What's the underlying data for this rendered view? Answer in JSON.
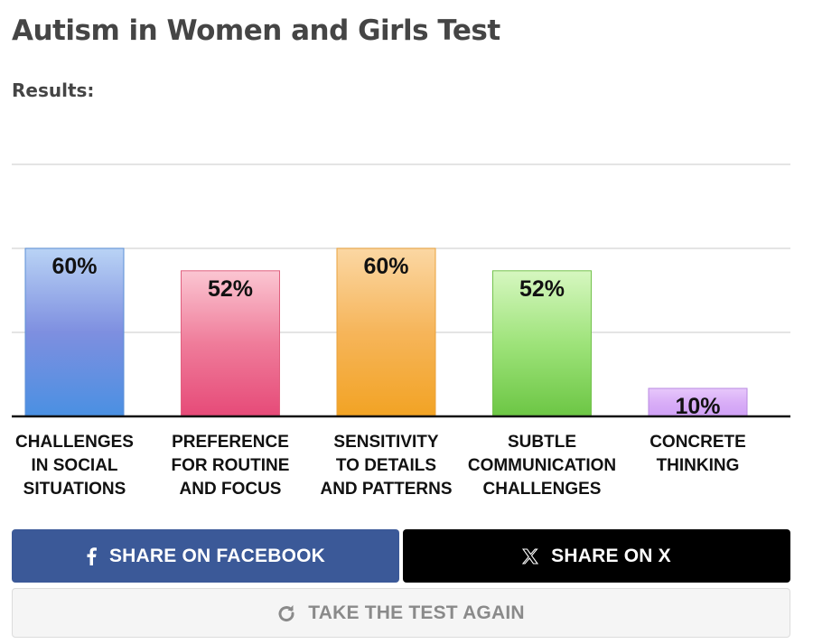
{
  "page": {
    "title": "Autism in Women and Girls Test",
    "results_label": "Results:"
  },
  "chart_data": {
    "type": "bar",
    "categories": [
      [
        "CHALLENGES",
        "IN SOCIAL",
        "SITUATIONS"
      ],
      [
        "PREFERENCE",
        "FOR ROUTINE",
        "AND FOCUS"
      ],
      [
        "SENSITIVITY",
        "TO DETAILS",
        "AND PATTERNS"
      ],
      [
        "SUBTLE",
        "COMMUNICATION",
        "CHALLENGES"
      ],
      [
        "CONCRETE",
        "THINKING"
      ]
    ],
    "values": [
      60,
      52,
      60,
      52,
      10
    ],
    "value_labels": [
      "60%",
      "52%",
      "60%",
      "52%",
      "10%"
    ],
    "ylim": [
      0,
      100
    ],
    "grid": true,
    "bar_colors": [
      {
        "top": "#b9d3f5",
        "mid": "#7e8fe0",
        "bottom": "#4a90e2",
        "stroke": "#5b8fd6"
      },
      {
        "top": "#fbc6d2",
        "mid": "#ef7c9a",
        "bottom": "#e64a78",
        "stroke": "#e0607f"
      },
      {
        "top": "#fbd7a3",
        "mid": "#f6b55a",
        "bottom": "#f2a324",
        "stroke": "#e9a23c"
      },
      {
        "top": "#d6f7c0",
        "mid": "#9ee37a",
        "bottom": "#6cc644",
        "stroke": "#74c24e"
      },
      {
        "top": "#e7c8fb",
        "mid": "#d9aef7",
        "bottom": "#cfa0f5",
        "stroke": "#b88ae0"
      }
    ]
  },
  "buttons": {
    "facebook": {
      "label": "SHARE ON FACEBOOK",
      "icon": "facebook-icon"
    },
    "x": {
      "label": "SHARE ON X",
      "icon": "x-logo-icon"
    },
    "again": {
      "label": "TAKE THE TEST AGAIN",
      "icon": "refresh-icon"
    }
  }
}
